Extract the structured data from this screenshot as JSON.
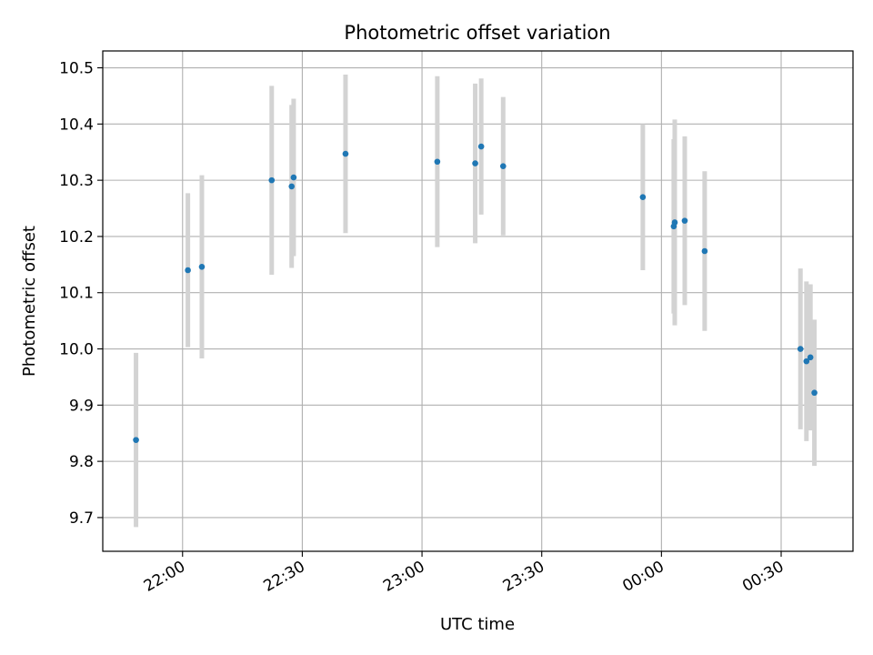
{
  "chart_data": {
    "type": "scatter",
    "title": "Photometric offset variation",
    "xlabel": "UTC time",
    "ylabel": "Photometric offset",
    "x_axis_kind": "time",
    "xlim": [
      "21:40",
      "00:48"
    ],
    "ylim": [
      9.64,
      10.53
    ],
    "xticks": [
      {
        "label": "22:00",
        "t": "22:00"
      },
      {
        "label": "22:30",
        "t": "22:30"
      },
      {
        "label": "23:00",
        "t": "23:00"
      },
      {
        "label": "23:30",
        "t": "23:30"
      },
      {
        "label": "00:00",
        "t": "00:00"
      },
      {
        "label": "00:30",
        "t": "00:30"
      }
    ],
    "yticks": [
      9.7,
      9.8,
      9.9,
      10.0,
      10.1,
      10.2,
      10.3,
      10.4,
      10.5
    ],
    "ytick_labels": [
      "9.7",
      "9.8",
      "9.9",
      "10.0",
      "10.1",
      "10.2",
      "10.3",
      "10.4",
      "10.5"
    ],
    "grid": true,
    "marker_color": "#1f77b4",
    "errorbar_color": "#d3d3d3",
    "points": [
      {
        "t": "21:48:20",
        "y": 9.838,
        "err": 0.155
      },
      {
        "t": "22:01:20",
        "y": 10.14,
        "err": 0.137
      },
      {
        "t": "22:04:50",
        "y": 10.146,
        "err": 0.163
      },
      {
        "t": "22:22:20",
        "y": 10.3,
        "err": 0.168
      },
      {
        "t": "22:27:20",
        "y": 10.289,
        "err": 0.145
      },
      {
        "t": "22:27:50",
        "y": 10.305,
        "err": 0.14
      },
      {
        "t": "22:40:50",
        "y": 10.347,
        "err": 0.141
      },
      {
        "t": "23:03:50",
        "y": 10.333,
        "err": 0.152
      },
      {
        "t": "23:13:20",
        "y": 10.33,
        "err": 0.142
      },
      {
        "t": "23:14:50",
        "y": 10.36,
        "err": 0.121
      },
      {
        "t": "23:20:20",
        "y": 10.325,
        "err": 0.123
      },
      {
        "t": "23:55:20",
        "y": 10.27,
        "err": 0.13
      },
      {
        "t": "00:03:05",
        "y": 10.218,
        "err": 0.155
      },
      {
        "t": "00:03:20",
        "y": 10.225,
        "err": 0.183
      },
      {
        "t": "00:05:50",
        "y": 10.228,
        "err": 0.15
      },
      {
        "t": "00:10:50",
        "y": 10.174,
        "err": 0.142
      },
      {
        "t": "00:34:50",
        "y": 10.0,
        "err": 0.143
      },
      {
        "t": "00:36:20",
        "y": 9.978,
        "err": 0.142
      },
      {
        "t": "00:37:20",
        "y": 9.985,
        "err": 0.13
      },
      {
        "t": "00:38:20",
        "y": 9.922,
        "err": 0.13
      }
    ]
  }
}
